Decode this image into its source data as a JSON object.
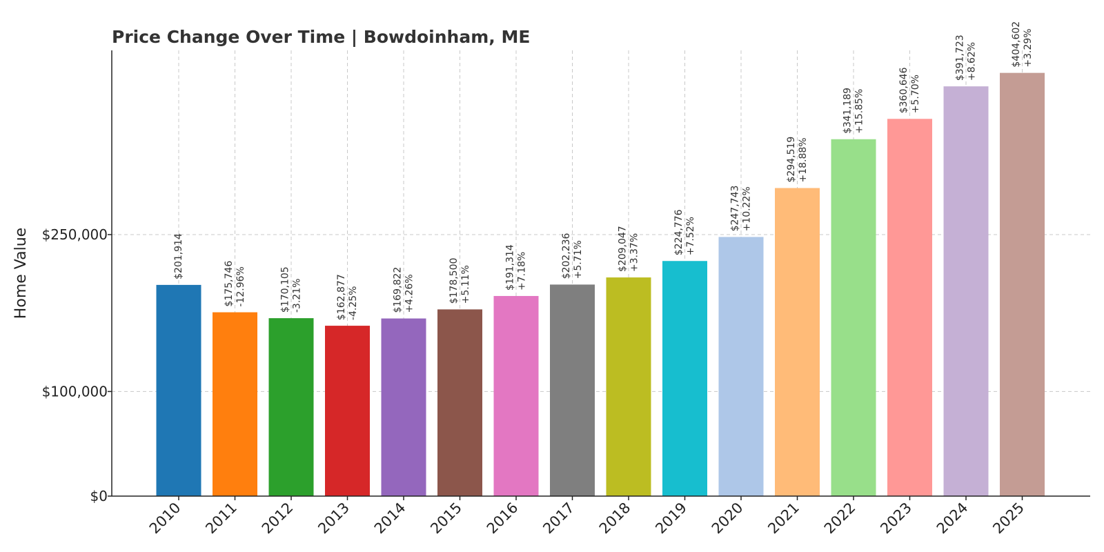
{
  "chart_data": {
    "type": "bar",
    "title": "Price Change Over Time | Bowdoinham, ME",
    "xlabel": "",
    "ylabel": "Home Value",
    "ylim": [
      0,
      420000
    ],
    "yticks": [
      0,
      100000,
      250000
    ],
    "ytick_labels": [
      "$0",
      "$100,000",
      "$250,000"
    ],
    "grid": true,
    "categories": [
      "2010",
      "2011",
      "2012",
      "2013",
      "2014",
      "2015",
      "2016",
      "2017",
      "2018",
      "2019",
      "2020",
      "2021",
      "2022",
      "2023",
      "2024",
      "2025"
    ],
    "values": [
      201914,
      175746,
      170105,
      162877,
      169822,
      178500,
      191314,
      202236,
      209047,
      224776,
      247743,
      294519,
      341189,
      360646,
      391723,
      404602
    ],
    "value_labels": [
      "$201,914",
      "$175,746",
      "$170,105",
      "$162,877",
      "$169,822",
      "$178,500",
      "$191,314",
      "$202,236",
      "$209,047",
      "$224,776",
      "$247,743",
      "$294,519",
      "$341,189",
      "$360,646",
      "$391,723",
      "$404,602"
    ],
    "change_labels": [
      "",
      "-12.96%",
      "-3.21%",
      "-4.25%",
      "+4.26%",
      "+5.11%",
      "+7.18%",
      "+5.71%",
      "+3.37%",
      "+7.52%",
      "+10.22%",
      "+18.88%",
      "+15.85%",
      "+5.70%",
      "+8.62%",
      "+3.29%"
    ],
    "colors": [
      "#1f77b4",
      "#ff7f0e",
      "#2ca02c",
      "#d62728",
      "#9467bd",
      "#8c564b",
      "#e377c2",
      "#7f7f7f",
      "#bcbd22",
      "#17becf",
      "#aec7e8",
      "#ffbb78",
      "#98df8a",
      "#ff9896",
      "#c5b0d5",
      "#c49c94"
    ]
  }
}
